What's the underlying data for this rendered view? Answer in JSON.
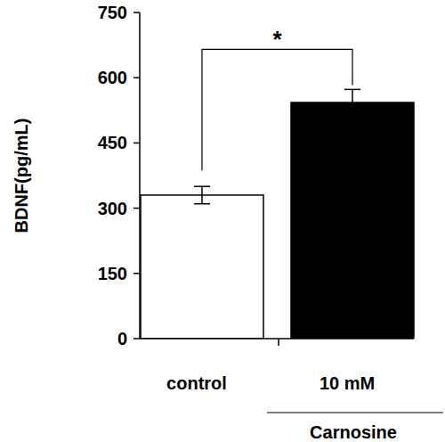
{
  "chart_data": {
    "type": "bar",
    "categories": [
      "control",
      "10 mM"
    ],
    "values": [
      330,
      543
    ],
    "errors": [
      20,
      30
    ],
    "colors": [
      "#ffffff",
      "#000000"
    ],
    "y_label": "BDNF(pg/mL)",
    "ylim": [
      0,
      750
    ],
    "yticks": [
      0,
      150,
      300,
      450,
      600,
      750
    ],
    "grid": false,
    "annotations": [
      "*",
      "Carnosine"
    ]
  }
}
